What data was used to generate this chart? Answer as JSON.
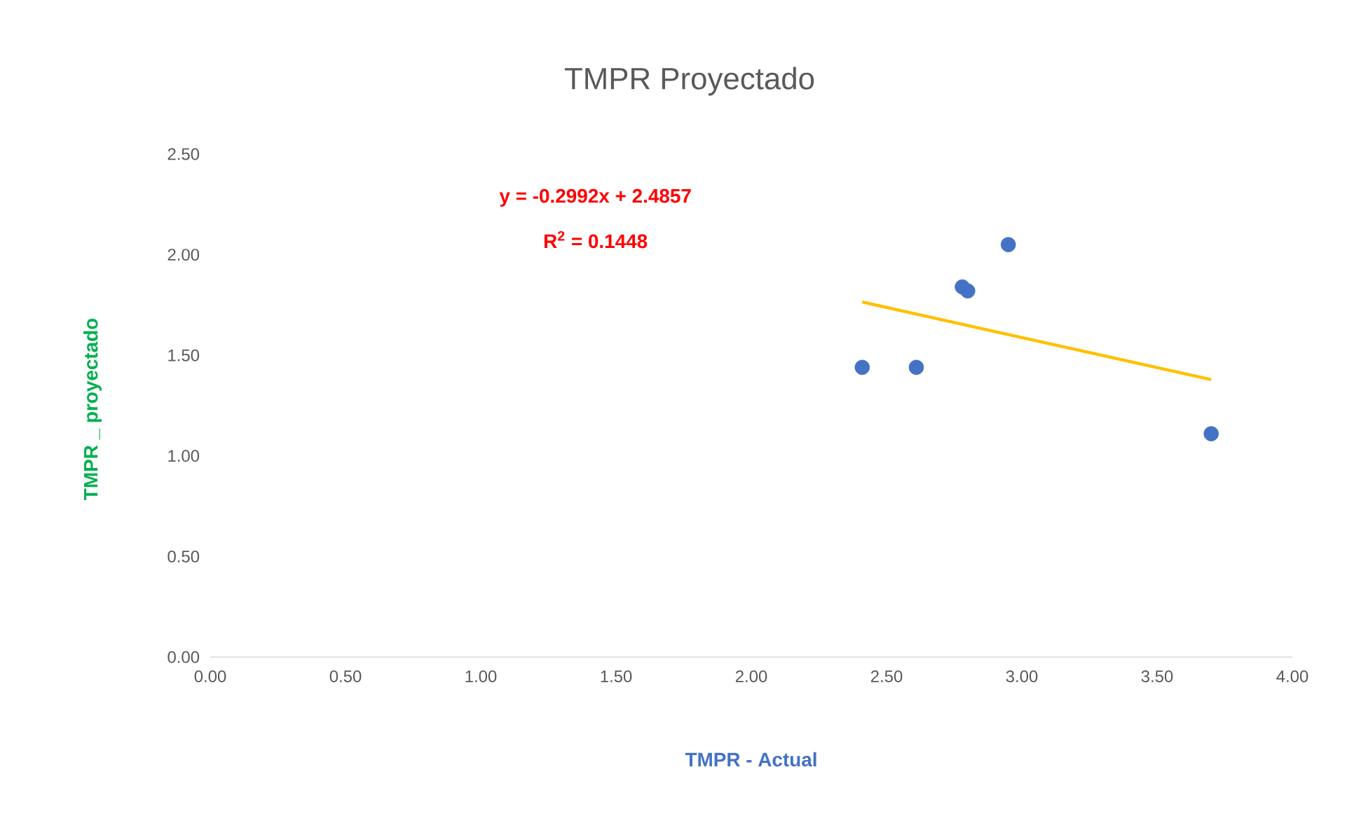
{
  "chart_data": {
    "type": "scatter",
    "title": "TMPR Proyectado",
    "xlabel": "TMPR - Actual",
    "ylabel": "TMPR _ proyectado",
    "annotations": [
      "y = -0.2992x + 2.4857",
      "R$^{2}$ = 0.1448"
    ],
    "xlim": [
      0,
      4
    ],
    "xticks": [
      {
        "value": 0,
        "label": "0.00"
      },
      {
        "value": 0.5,
        "label": "0.50"
      },
      {
        "value": 1,
        "label": "1.00"
      },
      {
        "value": 1.5,
        "label": "1.50"
      },
      {
        "value": 2,
        "label": "2.00"
      },
      {
        "value": 2.5,
        "label": "2.50"
      },
      {
        "value": 3,
        "label": "3.00"
      },
      {
        "value": 3.5,
        "label": "3.50"
      },
      {
        "value": 4,
        "label": "4.00"
      }
    ],
    "ylim": [
      0,
      2.5
    ],
    "yticks": [
      {
        "value": 0,
        "label": "0.00"
      },
      {
        "value": 0.5,
        "label": "0.50"
      },
      {
        "value": 1,
        "label": "1.00"
      },
      {
        "value": 1.5,
        "label": "1.50"
      },
      {
        "value": 2,
        "label": "2.00"
      },
      {
        "value": 2.5,
        "label": "2.50"
      }
    ],
    "grid": false,
    "series": [
      {
        "marker": "circle",
        "color": "#4472c4",
        "x": [
          2.41,
          2.61,
          2.78,
          2.8,
          2.95,
          3.7
        ],
        "values": [
          1.44,
          1.44,
          1.84,
          1.82,
          2.05,
          1.11
        ]
      },
      {
        "type": "line",
        "marker": "none",
        "color": "#ffc000",
        "x": [
          2.41,
          3.7
        ],
        "values": [
          1.765,
          1.379
        ]
      }
    ]
  }
}
